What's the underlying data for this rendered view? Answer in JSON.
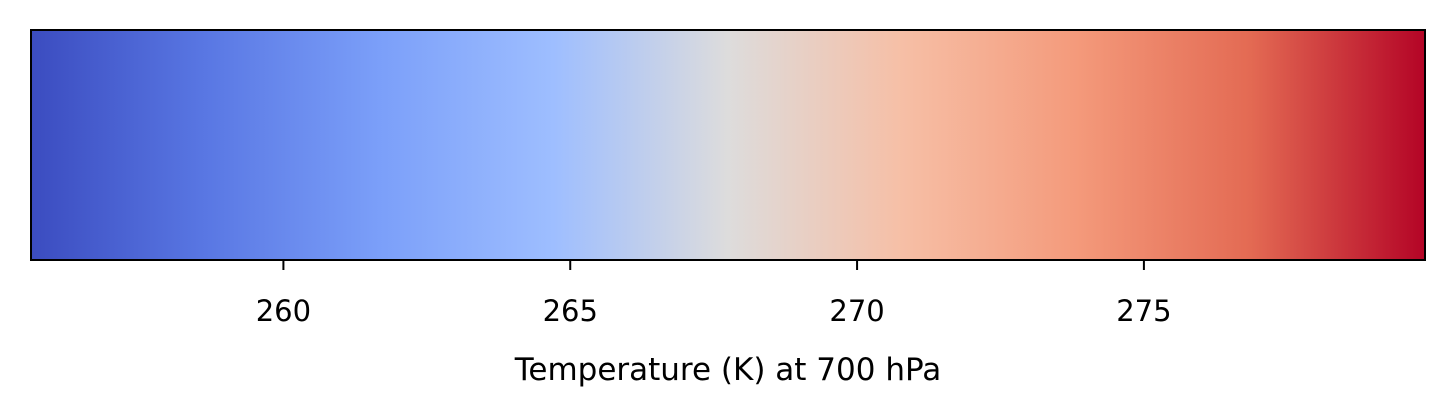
{
  "chart_data": {
    "type": "colorbar",
    "orientation": "horizontal",
    "colormap": "coolwarm",
    "xlabel": "Temperature (K) at 700 hPa",
    "xlim": [
      255.6,
      279.9
    ],
    "ticks": [
      260,
      265,
      270,
      275
    ],
    "tick_labels": [
      "260",
      "265",
      "270",
      "275"
    ],
    "color_stops": [
      {
        "pos": 0.0,
        "color": "#3b4cc0"
      },
      {
        "pos": 0.125,
        "color": "#5977e3"
      },
      {
        "pos": 0.25,
        "color": "#7b9ff9"
      },
      {
        "pos": 0.375,
        "color": "#9ebeff"
      },
      {
        "pos": 0.5,
        "color": "#dddcdc"
      },
      {
        "pos": 0.625,
        "color": "#f6bfa6"
      },
      {
        "pos": 0.75,
        "color": "#f49a7b"
      },
      {
        "pos": 0.875,
        "color": "#e36a53"
      },
      {
        "pos": 1.0,
        "color": "#b40426"
      }
    ]
  }
}
